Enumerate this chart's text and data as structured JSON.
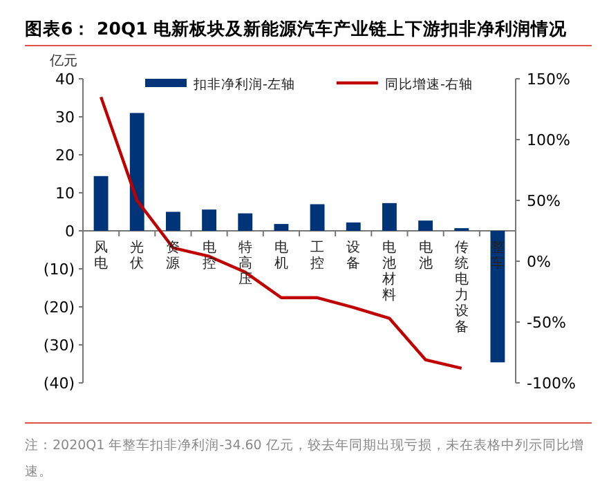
{
  "chart_data": {
    "type": "bar",
    "title": "图表6： 20Q1 电新板块及新能源汽车产业链上下游扣非净利润情况",
    "ylabel": "亿元",
    "categories": [
      "风电",
      "光伏",
      "资源",
      "电控",
      "特高压",
      "电机",
      "工控",
      "设备",
      "电池材料",
      "电池",
      "传统电力设备",
      "整车"
    ],
    "series": [
      {
        "name": "扣非净利润-左轴",
        "color": "#003478",
        "values": [
          14.4,
          31.0,
          5.0,
          5.6,
          4.6,
          1.8,
          7.0,
          2.2,
          7.3,
          2.7,
          0.7,
          -34.6
        ]
      },
      {
        "name": "同比增速-右轴",
        "type": "line",
        "axis": "y2",
        "color": "#c00000",
        "values": [
          135,
          50,
          11,
          4,
          -9,
          -30,
          -30,
          -38,
          -47,
          -81,
          -88,
          null
        ]
      }
    ],
    "ylim": [
      -40,
      40
    ],
    "yticks": [
      {
        "value": -40,
        "label": "(40)"
      },
      {
        "value": -30,
        "label": "(30)"
      },
      {
        "value": -20,
        "label": "(20)"
      },
      {
        "value": -10,
        "label": "(10)"
      },
      0,
      10,
      20,
      30,
      40
    ],
    "y2lim": [
      -100,
      150
    ],
    "y2ticks": [
      {
        "value": -100,
        "label": "-100%"
      },
      {
        "value": -50,
        "label": "-50%"
      },
      {
        "value": 0,
        "label": "0%"
      },
      {
        "value": 50,
        "label": "50%"
      },
      {
        "value": 100,
        "label": "100%"
      },
      {
        "value": 150,
        "label": "150%"
      }
    ],
    "legend": "top",
    "grid": false,
    "annotations": [
      "注：2020Q1 年整车扣非净利润-34.60 亿元，较去年同期出现亏损，未在表格中列示同比增速。"
    ]
  }
}
